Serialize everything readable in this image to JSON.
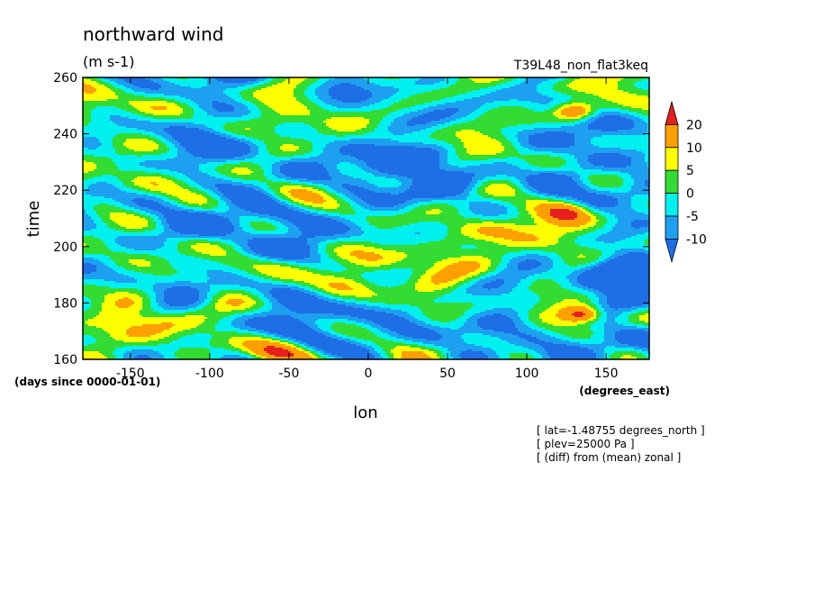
{
  "chart_data": {
    "type": "heatmap",
    "title": "northward wind",
    "units": "(m s-1)",
    "experiment": "T39L48_non_flat3keq",
    "xlabel": "lon",
    "xunits": "(degrees_east)",
    "ylabel": "time",
    "yunits": "(days since 0000-01-01)",
    "xlim": [
      -180,
      177.1875
    ],
    "ylim": [
      160,
      260
    ],
    "xticks": [
      -150,
      -100,
      -50,
      0,
      50,
      100,
      150
    ],
    "yticks": [
      160,
      180,
      200,
      220,
      240,
      260
    ],
    "xtick_labels": [
      "-150",
      "-100",
      "-50",
      "0",
      "50",
      "100",
      "150"
    ],
    "ytick_labels": [
      "160",
      "180",
      "200",
      "220",
      "240",
      "260"
    ],
    "contour_levels": [
      -10,
      -5,
      0,
      5,
      10,
      20
    ],
    "colorbar_labels": [
      "20",
      "10",
      "5",
      "0",
      "-5",
      "-10"
    ],
    "colors": [
      "#1e6ee6",
      "#1ea0f0",
      "#00f0f0",
      "#32dc32",
      "#ffff00",
      "#ffa000",
      "#e61e1e"
    ],
    "notes": [
      "[ lat=-1.48755 degrees_north ]",
      "[ plev=25000 Pa ]",
      "[ (diff) from (mean) zonal ]"
    ]
  }
}
